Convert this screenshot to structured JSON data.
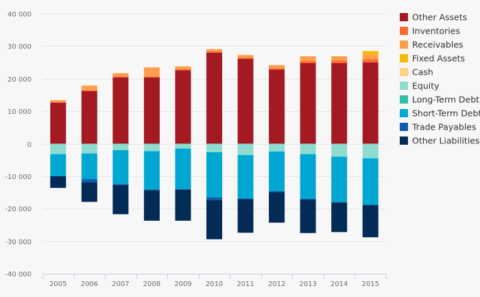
{
  "chart_data": {
    "type": "bar",
    "stacked": true,
    "title": "",
    "xlabel": "",
    "ylabel": "",
    "ylim": [
      -40000,
      40000
    ],
    "yticks": [
      40000,
      30000,
      20000,
      10000,
      0,
      -10000,
      -20000,
      -30000,
      -40000
    ],
    "ytick_labels": [
      "40 000",
      "30 000",
      "20 000",
      "10 000",
      "0",
      "-10 000",
      "-20 000",
      "-30 000",
      "-40 000"
    ],
    "grid": true,
    "legend_position": "right",
    "categories": [
      "2005",
      "2006",
      "2007",
      "2008",
      "2009",
      "2010",
      "2011",
      "2012",
      "2013",
      "2014",
      "2015"
    ],
    "series": [
      {
        "name": "Other Assets",
        "color": "#a31a22",
        "values": [
          12600,
          16200,
          20400,
          20400,
          22600,
          28000,
          26100,
          22800,
          24800,
          24800,
          25000
        ]
      },
      {
        "name": "Inventories",
        "color": "#ff6a33",
        "values": [
          300,
          300,
          300,
          300,
          300,
          400,
          400,
          400,
          700,
          800,
          1000
        ]
      },
      {
        "name": "Receivables",
        "color": "#ff9f4d",
        "values": [
          500,
          1400,
          1000,
          2800,
          900,
          700,
          800,
          1000,
          1400,
          1300,
          1300
        ]
      },
      {
        "name": "Fixed Assets",
        "color": "#f6b800",
        "values": [
          0,
          0,
          0,
          0,
          0,
          0,
          0,
          0,
          0,
          0,
          1200
        ]
      },
      {
        "name": "Cash",
        "color": "#ffd37f",
        "values": [
          0,
          0,
          0,
          0,
          0,
          0,
          0,
          0,
          0,
          0,
          0
        ]
      },
      {
        "name": "Equity",
        "color": "#8ddccf",
        "values": [
          -3200,
          -3000,
          -2000,
          -2300,
          -1500,
          -2600,
          -3500,
          -2400,
          -3200,
          -4000,
          -4500
        ]
      },
      {
        "name": "Long-Term Debt",
        "color": "#2ebfa8",
        "values": [
          0,
          0,
          0,
          0,
          0,
          0,
          0,
          0,
          0,
          0,
          0
        ]
      },
      {
        "name": "Short-Term Debt",
        "color": "#00a7d3",
        "values": [
          -6800,
          -7900,
          -10400,
          -11800,
          -12500,
          -13900,
          -13400,
          -12200,
          -13800,
          -13900,
          -14300
        ]
      },
      {
        "name": "Trade Payables",
        "color": "#0a5cad",
        "values": [
          0,
          -1000,
          -300,
          -200,
          -100,
          -900,
          -200,
          -300,
          -200,
          -200,
          -100
        ]
      },
      {
        "name": "Other Liabilities",
        "color": "#022b55",
        "values": [
          -3600,
          -6000,
          -9000,
          -9400,
          -9600,
          -12000,
          -10300,
          -9400,
          -10300,
          -9100,
          -9900
        ]
      }
    ]
  }
}
